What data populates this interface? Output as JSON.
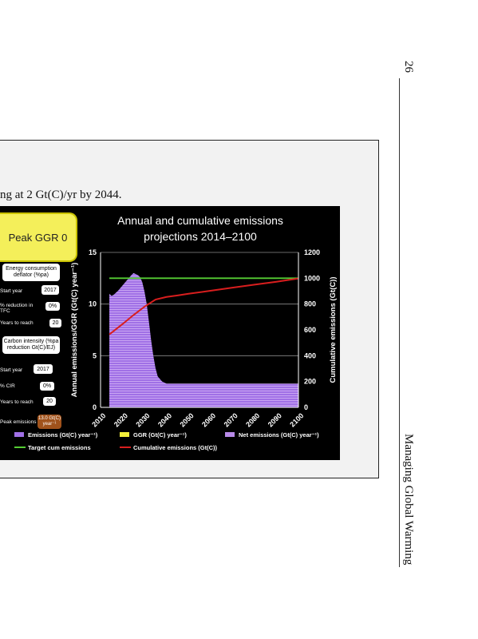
{
  "page": {
    "number": "26",
    "running_title": "Managing Global Warming"
  },
  "caption_text": "ng at 2 Gt(C)/yr by 2044.",
  "controls": {
    "peak_label": "Peak GGR 0",
    "energy_box": "Energy consumption deflator (%pa)",
    "start_year_1_label": "Start year",
    "start_year_1_value": "2017",
    "reduction_label_1": "% reduction in",
    "reduction_label_2": "TFC",
    "reduction_value": "0%",
    "years_to_reach_1_label": "Years to reach",
    "years_to_reach_1_value": "20",
    "carbon_box": "Carbon intensity (%pa reduction Gt(C)/EJ)",
    "start_year_2_label": "Start year",
    "start_year_2_value": "2017",
    "cir_label": "% CIR",
    "cir_value": "0%",
    "years_to_reach_2_label": "Years to reach",
    "years_to_reach_2_value": "20",
    "peak_emissions_label": "Peak emissions",
    "peak_emissions_value": "13.0 Gt(C) year⁻¹"
  },
  "colors": {
    "emissions_fill": "#a070e6",
    "ggr": "#f2ee3a",
    "net_emissions": "#b88ae8",
    "target_line": "#55cc33",
    "cumulative_line": "#d81e1e",
    "panel_bg": "#000000",
    "peak_box": "#f4ef5a",
    "peak_emissions_box": "#a0521b"
  },
  "chart_data": {
    "type": "area",
    "title": "Annual and cumulative emissions projections 2014–2100",
    "ylabel_left": "Annual emissions/GGR (Gt(C) year⁻¹)",
    "ylabel_right": "Cumulative emissions (Gt(C))",
    "ylim_left": [
      0,
      15
    ],
    "ylim_right": [
      0,
      1200
    ],
    "yticks_left": [
      "0",
      "5",
      "10",
      "15"
    ],
    "yticks_right": [
      "0",
      "200",
      "400",
      "600",
      "800",
      "1000",
      "1200"
    ],
    "xlim": [
      2010,
      2100
    ],
    "xticks": [
      "2010",
      "2020",
      "2030",
      "2040",
      "2050",
      "2060",
      "2070",
      "2080",
      "2090",
      "2100"
    ],
    "grid": true,
    "legend_position": "bottom",
    "series": [
      {
        "name": "Emissions (Gt(C) year⁻¹)",
        "axis": "left",
        "x": [
          2014,
          2015,
          2016,
          2018,
          2020,
          2022,
          2024,
          2025,
          2026,
          2027,
          2028,
          2029,
          2030,
          2031,
          2032,
          2033,
          2034,
          2035,
          2036,
          2038,
          2040,
          2045,
          2050,
          2060,
          2070,
          2080,
          2090,
          2100
        ],
        "values": [
          11.0,
          10.8,
          10.9,
          11.3,
          11.8,
          12.3,
          12.8,
          13.0,
          12.9,
          12.8,
          12.6,
          12.1,
          11.2,
          10.0,
          8.3,
          6.5,
          5.0,
          3.8,
          3.0,
          2.5,
          2.3,
          2.3,
          2.3,
          2.3,
          2.3,
          2.3,
          2.3,
          2.3
        ]
      },
      {
        "name": "GGR (Gt(C) year⁻¹)",
        "axis": "left",
        "x": [
          2014,
          2100
        ],
        "values": [
          0,
          0
        ]
      },
      {
        "name": "Net emissions (Gt(C) year⁻¹)",
        "axis": "left",
        "x": [
          2014,
          2015,
          2016,
          2018,
          2020,
          2022,
          2024,
          2025,
          2026,
          2027,
          2028,
          2029,
          2030,
          2031,
          2032,
          2033,
          2034,
          2035,
          2036,
          2038,
          2040,
          2045,
          2050,
          2060,
          2070,
          2080,
          2090,
          2100
        ],
        "values": [
          11.0,
          10.8,
          10.9,
          11.3,
          11.8,
          12.3,
          12.8,
          13.0,
          12.9,
          12.8,
          12.6,
          12.1,
          11.2,
          10.0,
          8.3,
          6.5,
          5.0,
          3.8,
          3.0,
          2.5,
          2.3,
          2.3,
          2.3,
          2.3,
          2.3,
          2.3,
          2.3,
          2.3
        ]
      },
      {
        "name": "Target cum emissions",
        "axis": "right",
        "x": [
          2014,
          2100
        ],
        "values": [
          1000,
          1000
        ]
      },
      {
        "name": "Cumulative emissions (Gt(C))",
        "axis": "right",
        "x": [
          2014,
          2020,
          2025,
          2030,
          2035,
          2040,
          2045,
          2050,
          2060,
          2070,
          2080,
          2090,
          2100
        ],
        "values": [
          565,
          645,
          715,
          780,
          835,
          855,
          867,
          880,
          903,
          927,
          950,
          973,
          998
        ]
      }
    ]
  }
}
